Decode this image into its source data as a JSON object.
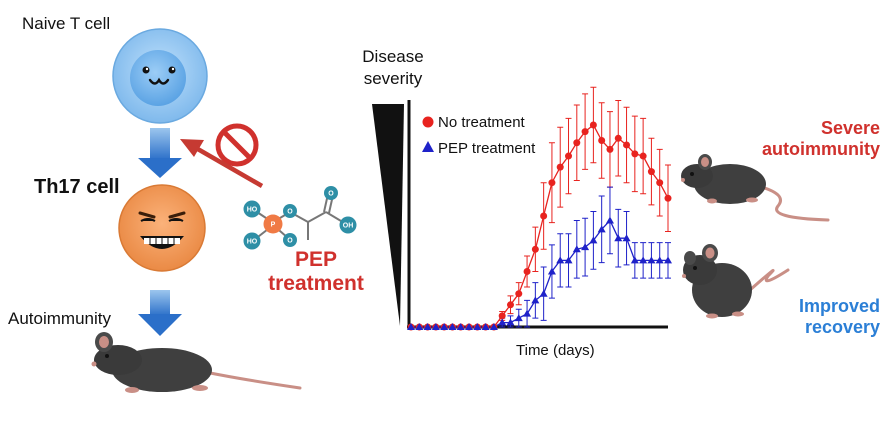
{
  "labels": {
    "naive": "Naive T cell",
    "th17": "Th17 cell",
    "autoimmunity": "Autoimmunity",
    "pep_line1": "PEP",
    "pep_line2": "treatment",
    "severity_line1": "Disease",
    "severity_line2": "severity",
    "time": "Time (days)",
    "severe_line1": "Severe",
    "severe_line2": "autoimmunity",
    "improved_line1": "Improved",
    "improved_line2": "recovery"
  },
  "molecule_atoms": [
    "HO",
    "P",
    "HO",
    "O",
    "O",
    "O",
    "OH"
  ],
  "chart_data": {
    "type": "line",
    "xlabel": "Time (days)",
    "ylabel": "Disease severity",
    "legend_position": "top-left",
    "series": [
      {
        "name": "No treatment",
        "color": "#e8231f",
        "marker": "circle",
        "values": [
          0,
          0,
          0,
          0,
          0,
          0,
          0,
          0,
          0,
          0,
          0,
          0.05,
          0.1,
          0.15,
          0.25,
          0.35,
          0.5,
          0.65,
          0.72,
          0.77,
          0.83,
          0.88,
          0.91,
          0.84,
          0.8,
          0.85,
          0.82,
          0.78,
          0.77,
          0.7,
          0.65,
          0.58
        ],
        "errors": [
          0,
          0,
          0,
          0,
          0,
          0,
          0,
          0,
          0,
          0,
          0,
          0.02,
          0.04,
          0.05,
          0.07,
          0.1,
          0.15,
          0.18,
          0.18,
          0.17,
          0.17,
          0.17,
          0.17,
          0.17,
          0.17,
          0.17,
          0.17,
          0.17,
          0.17,
          0.15,
          0.15,
          0.15
        ]
      },
      {
        "name": "PEP treatment",
        "color": "#1f22c9",
        "marker": "triangle",
        "values": [
          0,
          0,
          0,
          0,
          0,
          0,
          0,
          0,
          0,
          0,
          0,
          0.02,
          0.02,
          0.04,
          0.06,
          0.12,
          0.15,
          0.25,
          0.3,
          0.3,
          0.35,
          0.36,
          0.39,
          0.44,
          0.48,
          0.4,
          0.4,
          0.3,
          0.3,
          0.3,
          0.3,
          0.3
        ],
        "errors": [
          0,
          0,
          0,
          0,
          0,
          0,
          0,
          0,
          0,
          0,
          0,
          0.02,
          0.03,
          0.04,
          0.06,
          0.08,
          0.12,
          0.12,
          0.12,
          0.12,
          0.13,
          0.13,
          0.13,
          0.15,
          0.15,
          0.13,
          0.12,
          0.08,
          0.08,
          0.08,
          0.08,
          0.08
        ]
      }
    ]
  }
}
